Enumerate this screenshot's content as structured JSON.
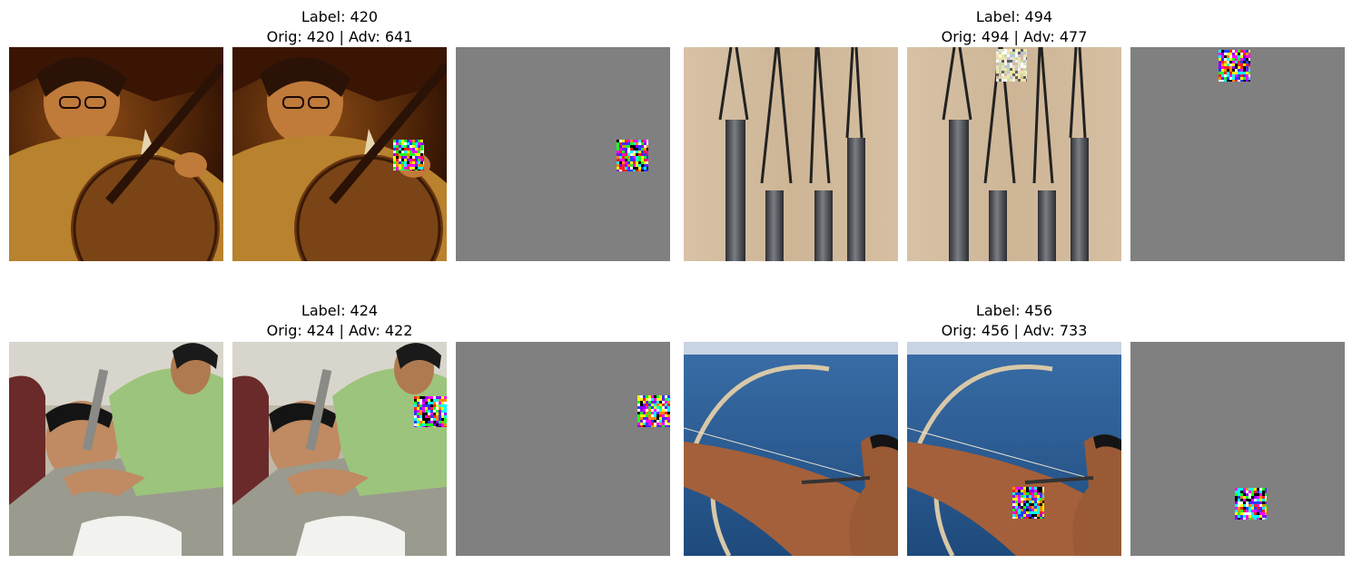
{
  "figure": {
    "rows": [
      {
        "groups": [
          {
            "title_label": "Label: 420",
            "title_pred": "Orig: 420 | Adv: 641",
            "images": [
              "banjo player (original)",
              "banjo player (adversarial)",
              "perturbation patch"
            ]
          },
          {
            "title_label": "Label: 494",
            "title_pred": "Orig: 494 | Adv: 477",
            "images": [
              "wind chimes (original)",
              "wind chimes (adversarial)",
              "perturbation patch"
            ]
          }
        ]
      },
      {
        "groups": [
          {
            "title_label": "Label: 424",
            "title_pred": "Orig: 424 | Adv: 422",
            "images": [
              "barber shave (original)",
              "barber shave (adversarial)",
              "perturbation patch"
            ]
          },
          {
            "title_label": "Label: 456",
            "title_pred": "Orig: 456 | Adv: 733",
            "images": [
              "archer with bow (original)",
              "archer with bow (adversarial)",
              "perturbation patch"
            ]
          }
        ]
      }
    ],
    "colors": {
      "background": "#ffffff",
      "perturbation_bg": "#808080"
    }
  }
}
